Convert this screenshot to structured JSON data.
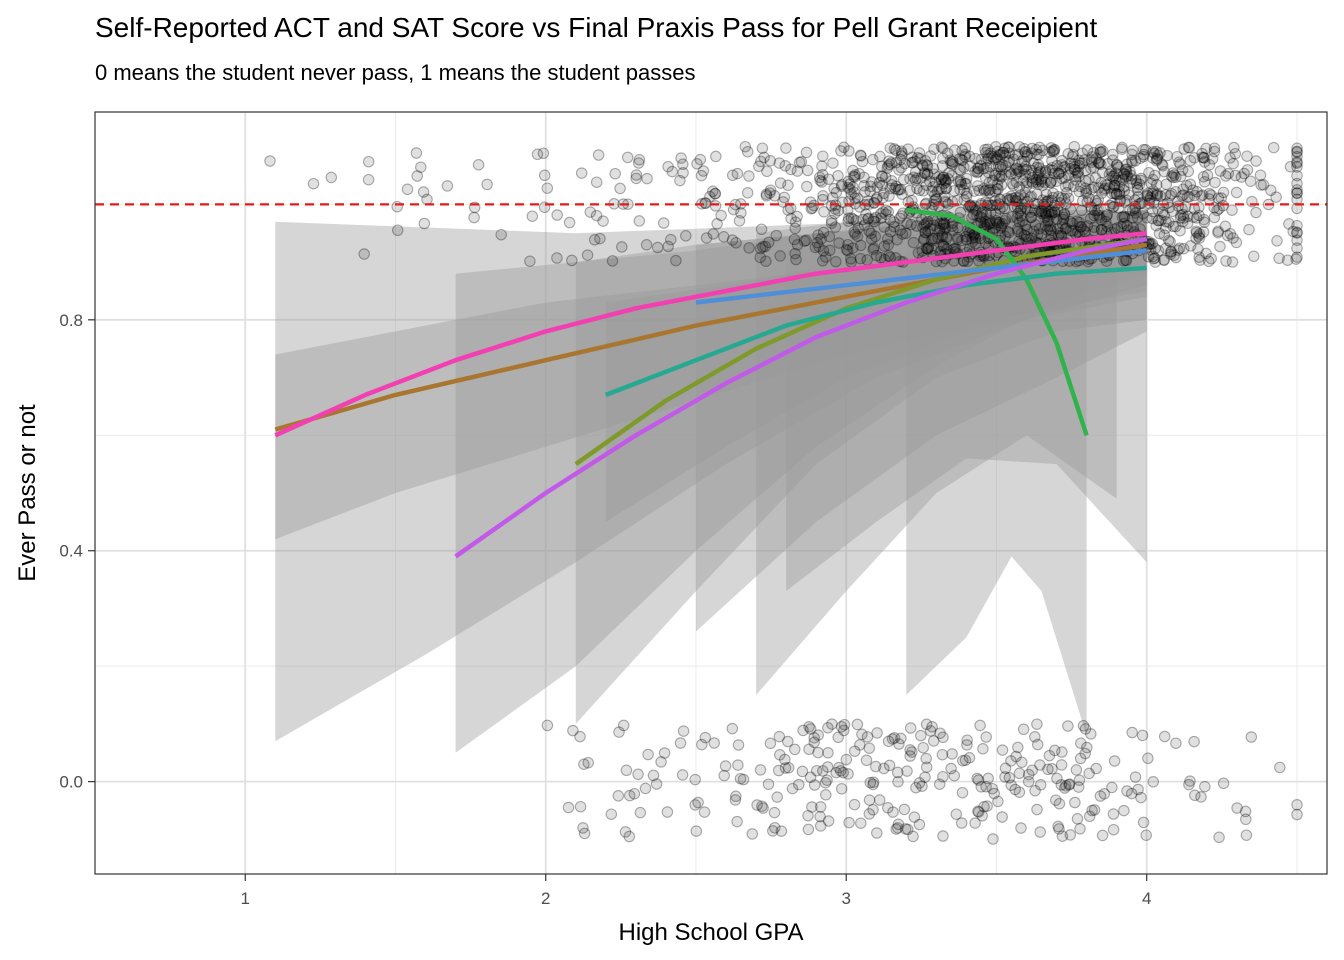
{
  "chart_data": {
    "type": "scatter",
    "title": "Self-Reported ACT and SAT Score vs Final Praxis Pass for Pell Grant Receipient",
    "subtitle": "0 means the student never pass, 1 means the student passes",
    "xlabel": "High School GPA",
    "ylabel": "Ever Pass or not",
    "xlim": [
      0.5,
      4.6
    ],
    "ylim": [
      -0.16,
      1.16
    ],
    "x_ticks": [
      1,
      2,
      3,
      4
    ],
    "x_tick_labels": [
      "1",
      "2",
      "3",
      "4"
    ],
    "y_ticks": [
      0.0,
      0.4,
      0.8
    ],
    "y_tick_labels": [
      "0.0",
      "0.4",
      "0.8"
    ],
    "grid": true,
    "reference_line": {
      "y": 1.0,
      "color": "#e41a1c",
      "style": "dashed"
    },
    "points": {
      "color": "#000000",
      "opacity": 0.2,
      "pass_group": {
        "y_center": 1.0,
        "count_estimate": 1400
      },
      "fail_group": {
        "y_center": 0.0,
        "count_estimate": 300
      }
    },
    "series": [
      {
        "color": "#a9762f",
        "x": [
          1.1,
          1.5,
          2.0,
          2.5,
          3.0,
          3.5,
          4.0
        ],
        "y": [
          0.61,
          0.67,
          0.73,
          0.79,
          0.84,
          0.89,
          0.93
        ]
      },
      {
        "color": "#7f9a2b",
        "x": [
          2.1,
          2.4,
          2.7,
          3.0,
          3.3,
          3.6,
          4.0
        ],
        "y": [
          0.55,
          0.66,
          0.75,
          0.82,
          0.87,
          0.91,
          0.94
        ]
      },
      {
        "color": "#2fb34a",
        "x": [
          3.2,
          3.35,
          3.5,
          3.6,
          3.7,
          3.8
        ],
        "y": [
          0.99,
          0.98,
          0.94,
          0.87,
          0.76,
          0.6
        ]
      },
      {
        "color": "#27a891",
        "x": [
          2.2,
          2.5,
          2.8,
          3.1,
          3.4,
          3.7,
          4.0
        ],
        "y": [
          0.67,
          0.73,
          0.79,
          0.83,
          0.86,
          0.88,
          0.89
        ]
      },
      {
        "color": "#4f8fd8",
        "x": [
          2.5,
          3.0,
          3.5,
          4.0
        ],
        "y": [
          0.83,
          0.86,
          0.89,
          0.92
        ]
      },
      {
        "color": "#c15ae8",
        "x": [
          1.7,
          2.0,
          2.3,
          2.6,
          2.9,
          3.2,
          3.5,
          3.8,
          4.0
        ],
        "y": [
          0.39,
          0.5,
          0.6,
          0.69,
          0.77,
          0.83,
          0.88,
          0.92,
          0.94
        ]
      },
      {
        "color": "#f23fb1",
        "x": [
          1.1,
          1.4,
          1.7,
          2.0,
          2.3,
          2.6,
          2.9,
          3.2,
          3.5,
          3.8,
          4.0
        ],
        "y": [
          0.6,
          0.67,
          0.73,
          0.78,
          0.82,
          0.85,
          0.88,
          0.9,
          0.92,
          0.94,
          0.95
        ]
      }
    ],
    "confidence_bands": [
      {
        "x": [
          1.1,
          1.5,
          2.0,
          2.5,
          3.0,
          3.5,
          4.0
        ],
        "lower": [
          0.42,
          0.5,
          0.58,
          0.66,
          0.74,
          0.8,
          0.85
        ],
        "upper": [
          0.74,
          0.78,
          0.83,
          0.86,
          0.89,
          0.93,
          0.97
        ]
      },
      {
        "x": [
          1.1,
          1.6,
          2.1,
          2.6,
          3.1,
          3.6,
          4.0
        ],
        "lower": [
          0.07,
          0.22,
          0.38,
          0.55,
          0.7,
          0.8,
          0.86
        ],
        "upper": [
          0.97,
          0.96,
          0.95,
          0.96,
          0.97,
          0.98,
          0.99
        ]
      },
      {
        "x": [
          1.7,
          2.1,
          2.5,
          2.9,
          3.3,
          3.7,
          4.0
        ],
        "lower": [
          0.05,
          0.2,
          0.4,
          0.58,
          0.72,
          0.83,
          0.88
        ],
        "upper": [
          0.88,
          0.9,
          0.93,
          0.95,
          0.96,
          0.97,
          0.98
        ]
      },
      {
        "x": [
          2.1,
          2.5,
          2.9,
          3.3,
          3.7,
          4.0
        ],
        "lower": [
          0.1,
          0.33,
          0.55,
          0.7,
          0.78,
          0.8
        ],
        "upper": [
          0.9,
          0.92,
          0.95,
          0.97,
          0.98,
          0.99
        ]
      },
      {
        "x": [
          2.2,
          2.6,
          3.0,
          3.4,
          3.8,
          4.0
        ],
        "lower": [
          0.45,
          0.58,
          0.7,
          0.78,
          0.82,
          0.84
        ],
        "upper": [
          0.83,
          0.86,
          0.9,
          0.93,
          0.95,
          0.96
        ]
      },
      {
        "x": [
          2.5,
          2.9,
          3.3,
          3.7,
          4.0
        ],
        "lower": [
          0.26,
          0.45,
          0.6,
          0.7,
          0.78
        ],
        "upper": [
          0.93,
          0.95,
          0.97,
          0.98,
          0.99
        ]
      },
      {
        "x": [
          2.7,
          3.0,
          3.3,
          3.6,
          3.9
        ],
        "lower": [
          0.15,
          0.33,
          0.5,
          0.6,
          0.49
        ],
        "upper": [
          0.95,
          0.97,
          0.98,
          0.99,
          0.99
        ]
      },
      {
        "x": [
          2.8,
          3.1,
          3.4,
          3.7,
          4.0
        ],
        "lower": [
          0.33,
          0.45,
          0.56,
          0.55,
          0.38
        ],
        "upper": [
          0.92,
          0.94,
          0.96,
          0.98,
          0.99
        ]
      },
      {
        "x": [
          3.2,
          3.4,
          3.55,
          3.65,
          3.8
        ],
        "lower": [
          0.15,
          0.25,
          0.39,
          0.33,
          0.08
        ],
        "upper": [
          1.0,
          1.0,
          1.0,
          1.0,
          1.0
        ]
      }
    ]
  }
}
